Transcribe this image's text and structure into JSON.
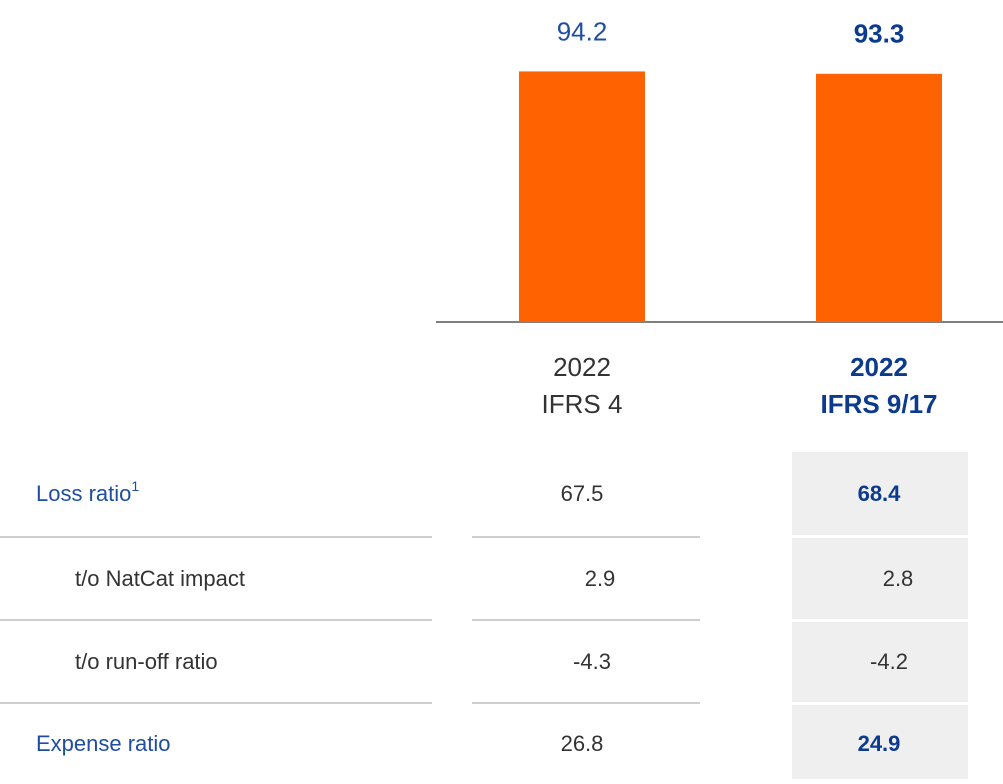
{
  "chart_data": {
    "type": "bar",
    "categories": [
      [
        "2022",
        "IFRS 4"
      ],
      [
        "2022",
        "IFRS 9/17"
      ]
    ],
    "values": [
      94.2,
      93.3
    ],
    "color": "#ff6200",
    "ylim": [
      0,
      100
    ]
  },
  "table": {
    "rows": [
      {
        "label": "Loss ratio",
        "note": "1",
        "values": [
          67.5,
          68.4
        ]
      },
      {
        "label": "t/o NatCat impact",
        "values": [
          2.9,
          2.8
        ]
      },
      {
        "label": "t/o run-off ratio",
        "values": [
          -4.3,
          -4.2
        ]
      },
      {
        "label": "Expense ratio",
        "values": [
          26.8,
          24.9
        ]
      }
    ]
  }
}
